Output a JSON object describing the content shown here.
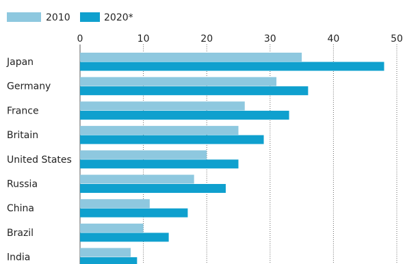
{
  "chart_data": {
    "type": "hbar",
    "categories": [
      "Japan",
      "Germany",
      "France",
      "Britain",
      "United States",
      "Russia",
      "China",
      "Brazil",
      "India"
    ],
    "series": [
      {
        "name": "2010",
        "color": "#8ec8df",
        "values": [
          35,
          31,
          26,
          25,
          20,
          18,
          11,
          10,
          8
        ]
      },
      {
        "name": "2020*",
        "color": "#0fa0ce",
        "values": [
          48,
          36,
          33,
          29,
          25,
          23,
          17,
          14,
          9
        ]
      }
    ],
    "xlim": [
      0,
      50
    ],
    "xticks": [
      0,
      10,
      20,
      30,
      40,
      50
    ],
    "grid": true,
    "legend": "top-left"
  }
}
